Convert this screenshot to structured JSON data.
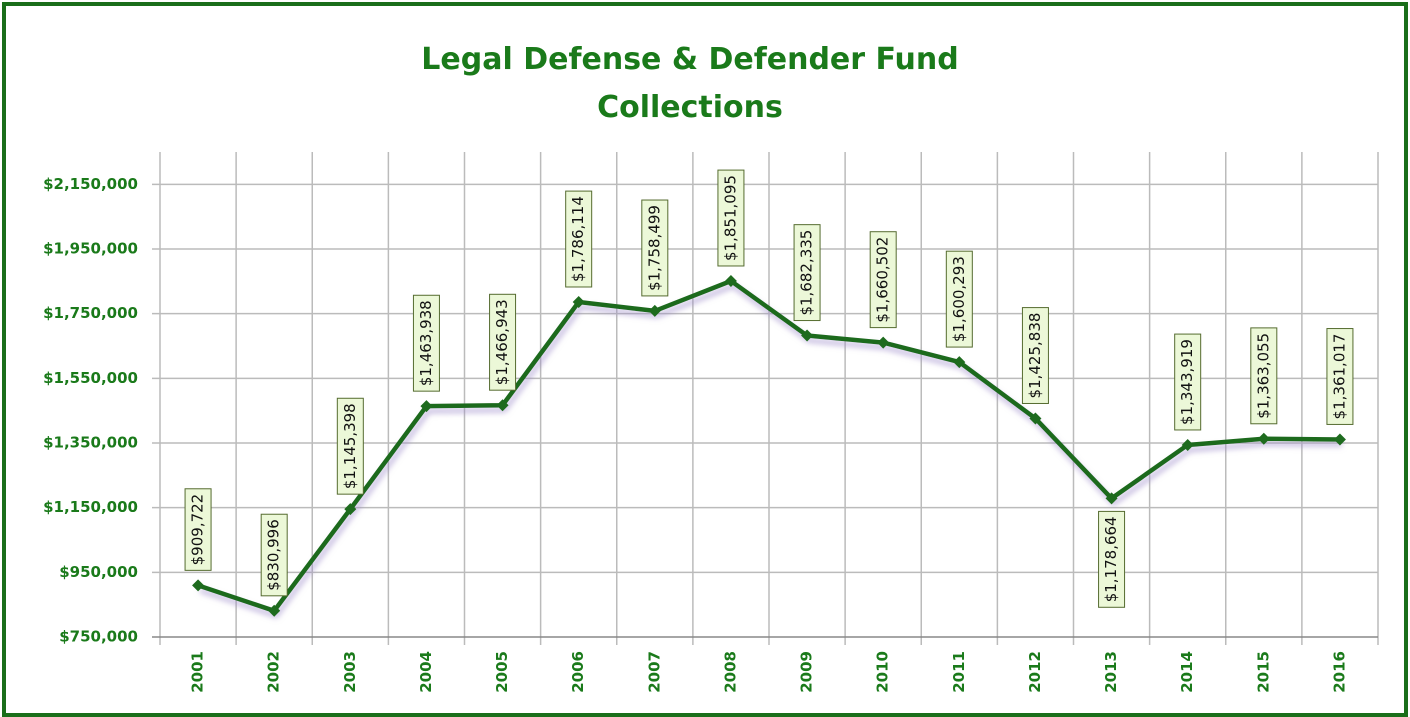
{
  "chart_data": {
    "type": "line",
    "title": "Legal Defense & Defender Fund Collections",
    "categories": [
      "2001",
      "2002",
      "2003",
      "2004",
      "2005",
      "2006",
      "2007",
      "2008",
      "2009",
      "2010",
      "2011",
      "2012",
      "2013",
      "2014",
      "2015",
      "2016"
    ],
    "series": [
      {
        "name": "Collections",
        "color": "#1e6b1e",
        "values": [
          909722,
          830996,
          1145398,
          1463938,
          1466943,
          1786114,
          1758499,
          1851095,
          1682335,
          1660502,
          1600293,
          1425838,
          1178664,
          1343919,
          1363055,
          1361017
        ],
        "value_labels": [
          "$909,722",
          "$830,996",
          "$1,145,398",
          "$1,463,938",
          "$1,466,943",
          "$1,786,114",
          "$1,758,499",
          "$1,851,095",
          "$1,682,335",
          "$1,660,502",
          "$1,600,293",
          "$1,425,838",
          "$1,178,664",
          "$1,343,919",
          "$1,363,055",
          "$1,361,017"
        ]
      }
    ],
    "ylim": [
      750000,
      2250000
    ],
    "yticks": [
      {
        "value": 750000,
        "label": "$750,000"
      },
      {
        "value": 950000,
        "label": "$950,000"
      },
      {
        "value": 1150000,
        "label": "$1,150,000"
      },
      {
        "value": 1350000,
        "label": "$1,350,000"
      },
      {
        "value": 1550000,
        "label": "$1,550,000"
      },
      {
        "value": 1750000,
        "label": "$1,750,000"
      },
      {
        "value": 1950000,
        "label": "$1,950,000"
      },
      {
        "value": 2150000,
        "label": "$2,150,000"
      }
    ],
    "grid": true
  }
}
